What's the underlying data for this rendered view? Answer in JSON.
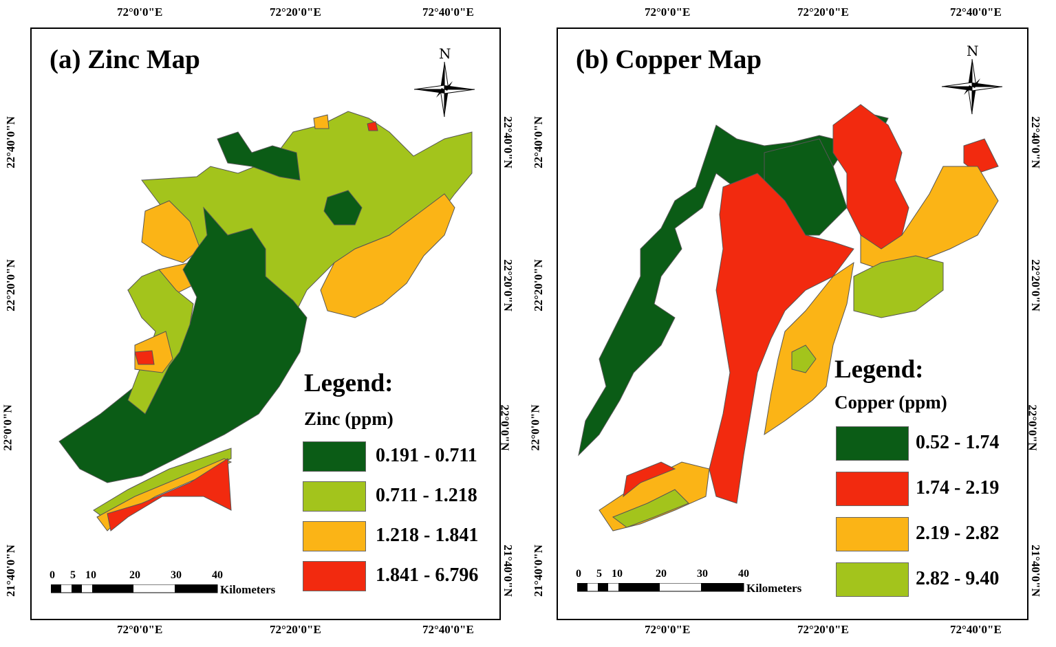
{
  "colors": {
    "dark_green": "#0b5c16",
    "light_green": "#a3c41c",
    "orange": "#fbb416",
    "red": "#f22a0f"
  },
  "panels": [
    {
      "title": "(a) Zinc Map",
      "legend_title": "Legend:",
      "legend_subtitle": "Zinc (ppm)",
      "legend": [
        {
          "label": "0.191 - 0.711",
          "color": "#0b5c16"
        },
        {
          "label": "0.711 - 1.218",
          "color": "#a3c41c"
        },
        {
          "label": "1.218 - 1.841",
          "color": "#fbb416"
        },
        {
          "label": "1.841 - 6.796",
          "color": "#f22a0f"
        }
      ],
      "north_label": "N",
      "scale": {
        "ticks": [
          "0",
          "5",
          "10",
          "20",
          "30",
          "40"
        ],
        "unit": "Kilometers"
      },
      "top_coords": [
        "72°0'0\"E",
        "72°20'0\"E",
        "72°40'0\"E"
      ],
      "bottom_coords": [
        "72°0'0\"E",
        "72°20'0\"E",
        "72°40'0\"E"
      ],
      "left_coords": [
        "22°40'0\"N",
        "22°20'0\"N",
        "22°0'0\"N",
        "21°40'0\"N"
      ],
      "right_coords": [
        "22°40'0\"N",
        "22°20'0\"N",
        "22°0'0\"N",
        "21°40'0\"N"
      ]
    },
    {
      "title": "(b) Copper Map",
      "legend_title": "Legend:",
      "legend_subtitle": "Copper (ppm)",
      "legend": [
        {
          "label": "0.52 - 1.74",
          "color": "#0b5c16"
        },
        {
          "label": "1.74 - 2.19",
          "color": "#f22a0f"
        },
        {
          "label": "2.19 - 2.82",
          "color": "#fbb416"
        },
        {
          "label": "2.82 - 9.40",
          "color": "#a3c41c"
        }
      ],
      "north_label": "N",
      "scale": {
        "ticks": [
          "0",
          "5",
          "10",
          "20",
          "30",
          "40"
        ],
        "unit": "Kilometers"
      },
      "top_coords": [
        "72°0'0\"E",
        "72°20'0\"E",
        "72°40'0\"E"
      ],
      "bottom_coords": [
        "72°0'0\"E",
        "72°20'0\"E",
        "72°40'0\"E"
      ],
      "left_coords": [
        "22°40'0\"N",
        "22°20'0\"N",
        "22°0'0\"N",
        "21°40'0\"N"
      ],
      "right_coords": [
        "22°40'0\"N",
        "22°20'0\"N",
        "22°0'0\"N",
        "21°40'0\"N"
      ]
    }
  ]
}
